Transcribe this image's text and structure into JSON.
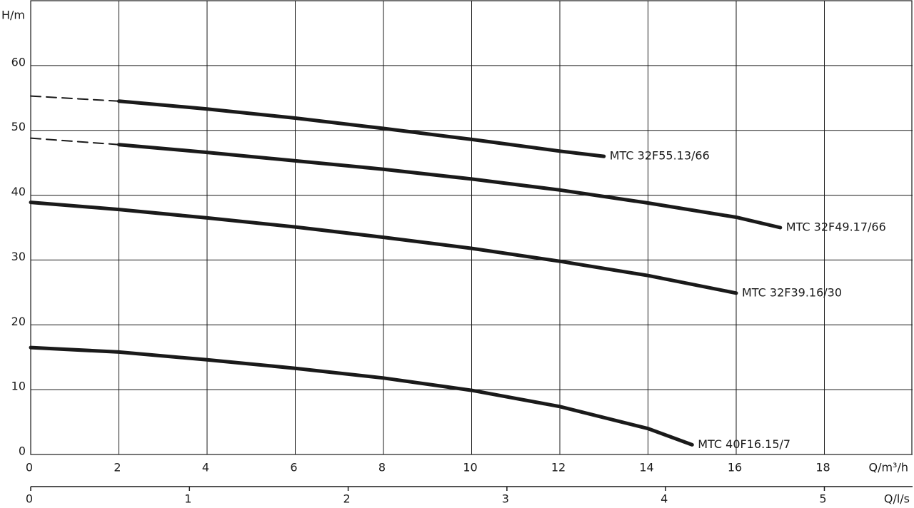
{
  "chart_data": {
    "type": "line",
    "y_label": "H/m",
    "x_label": "Q/m³/h",
    "x2_label": "Q/l/s",
    "xlim": [
      0,
      20
    ],
    "xticks": [
      0,
      2,
      4,
      6,
      8,
      10,
      12,
      14,
      16,
      18
    ],
    "ylim": [
      0,
      70
    ],
    "yticks": [
      0,
      10,
      20,
      30,
      40,
      50,
      60
    ],
    "x2lim": [
      0,
      5.5556
    ],
    "x2ticks": [
      0,
      1,
      2,
      3,
      4,
      5
    ],
    "grid": true,
    "series": [
      {
        "name": "MTC 32F55.13/66",
        "color": "#1a1a1a",
        "dashed_to": 2,
        "x": [
          0,
          2,
          4,
          6,
          8,
          10,
          12,
          13
        ],
        "values": [
          55.3,
          54.5,
          53.3,
          51.9,
          50.3,
          48.6,
          46.8,
          46.0
        ]
      },
      {
        "name": "MTC 32F49.17/66",
        "color": "#1a1a1a",
        "dashed_to": 2,
        "x": [
          0,
          2,
          4,
          6,
          8,
          10,
          12,
          14,
          16,
          17
        ],
        "values": [
          48.8,
          47.8,
          46.6,
          45.3,
          44.0,
          42.5,
          40.8,
          38.8,
          36.6,
          35.0
        ]
      },
      {
        "name": "MTC 32F39.16/30",
        "color": "#1a1a1a",
        "x": [
          0,
          2,
          4,
          6,
          8,
          10,
          12,
          14,
          16
        ],
        "values": [
          38.9,
          37.8,
          36.5,
          35.1,
          33.5,
          31.8,
          29.8,
          27.6,
          24.9
        ]
      },
      {
        "name": "MTC 40F16.15/7",
        "color": "#1a1a1a",
        "x": [
          0,
          2,
          4,
          6,
          8,
          10,
          12,
          14,
          15
        ],
        "values": [
          16.5,
          15.8,
          14.6,
          13.3,
          11.8,
          9.9,
          7.4,
          4.0,
          1.5
        ]
      }
    ]
  }
}
